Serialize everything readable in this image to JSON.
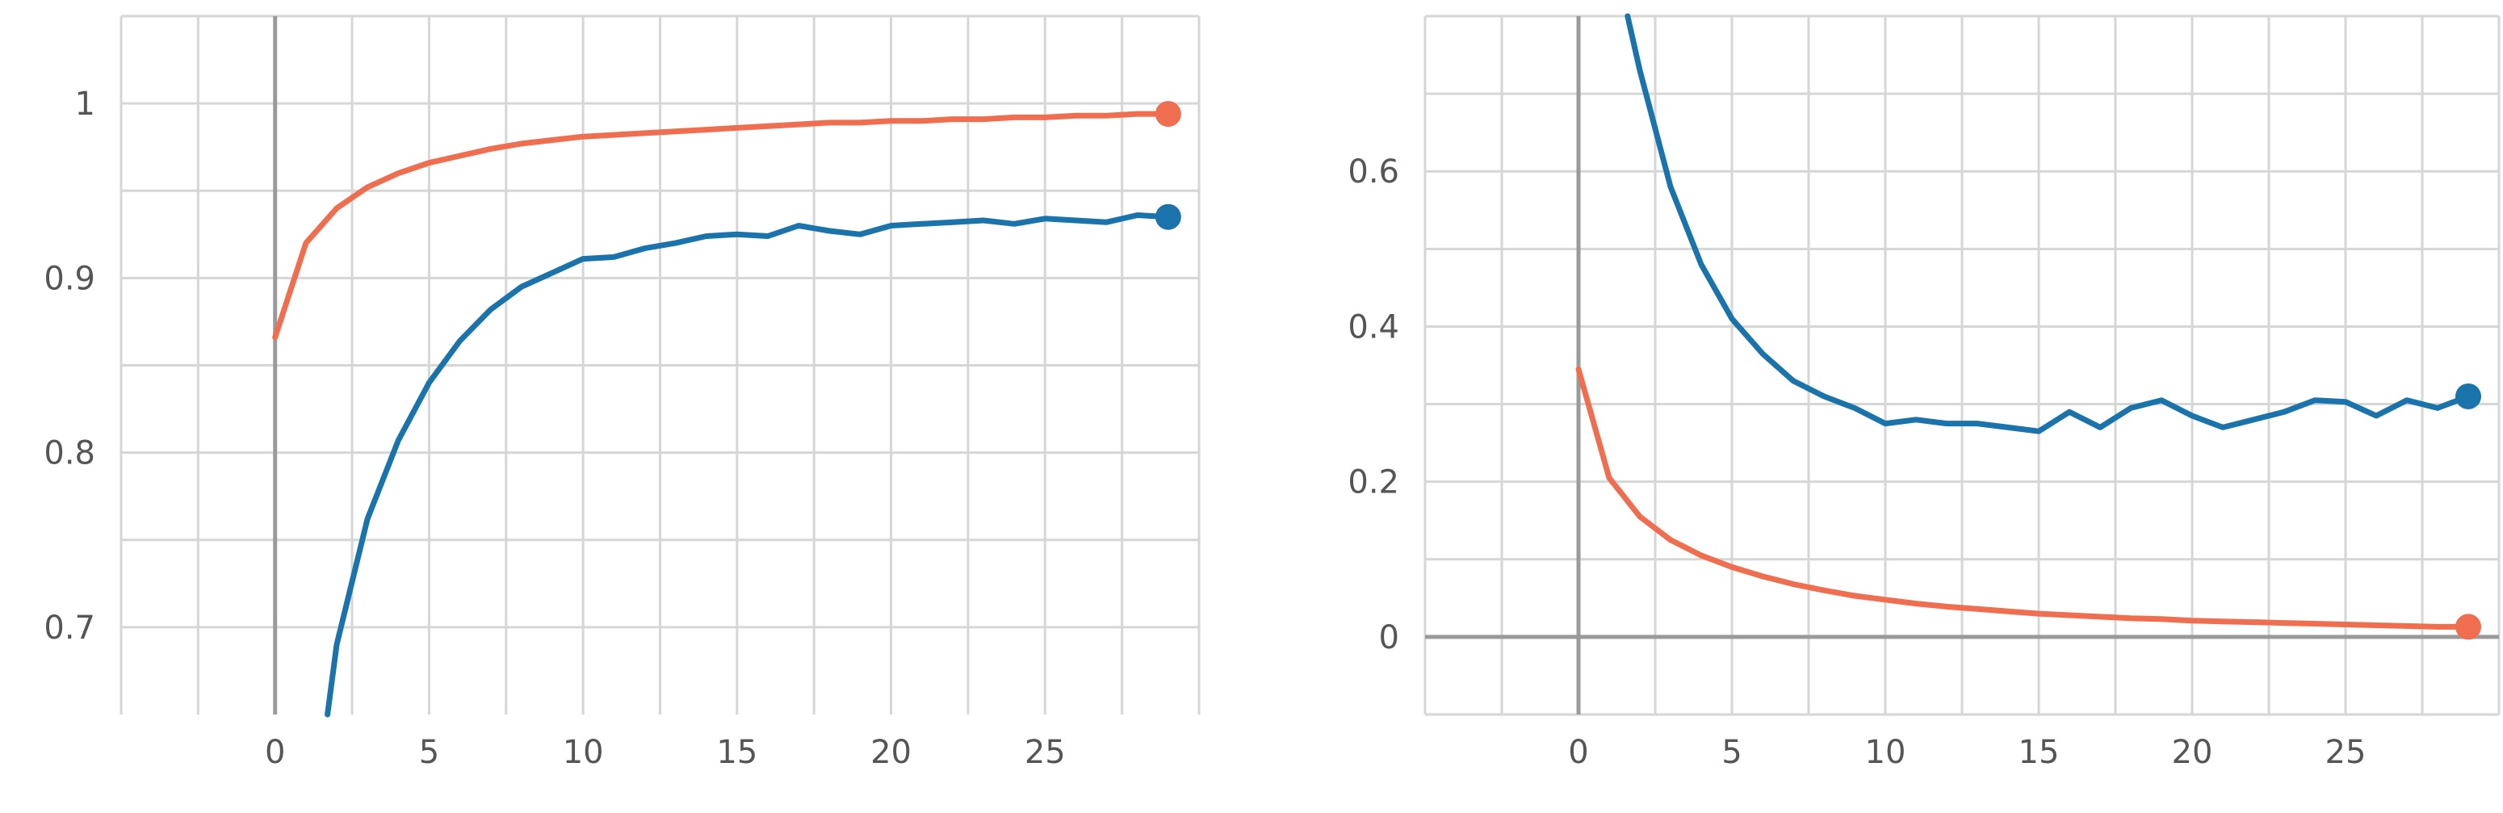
{
  "colors": {
    "train": "#ef6e4f",
    "val": "#1a73aa",
    "grid": "#d6d6d6",
    "axis": "#9a9a9a",
    "text": "#555555"
  },
  "chart_data": [
    {
      "type": "line",
      "title": "",
      "xlabel": "",
      "ylabel": "",
      "xlim": [
        -5,
        30
      ],
      "ylim": [
        0.65,
        1.05
      ],
      "x_ticks": [
        0,
        5,
        10,
        15,
        20,
        25
      ],
      "y_ticks": [
        0.7,
        0.8,
        0.9,
        1
      ],
      "y_tick_labels": [
        "0.7",
        "0.8",
        "0.9",
        "1"
      ],
      "grid": true,
      "series": [
        {
          "color_key": "train",
          "x": [
            0,
            1,
            2,
            3,
            4,
            5,
            6,
            7,
            8,
            9,
            10,
            11,
            12,
            13,
            14,
            15,
            16,
            17,
            18,
            19,
            20,
            21,
            22,
            23,
            24,
            25,
            26,
            27,
            28,
            29
          ],
          "values": [
            0.866,
            0.92,
            0.94,
            0.952,
            0.96,
            0.966,
            0.97,
            0.974,
            0.977,
            0.979,
            0.981,
            0.982,
            0.983,
            0.984,
            0.985,
            0.986,
            0.987,
            0.988,
            0.989,
            0.989,
            0.99,
            0.99,
            0.991,
            0.991,
            0.992,
            0.992,
            0.993,
            0.993,
            0.994,
            0.994
          ]
        },
        {
          "color_key": "val",
          "x": [
            1.7,
            2,
            3,
            4,
            5,
            6,
            7,
            8,
            9,
            10,
            11,
            12,
            13,
            14,
            15,
            16,
            17,
            18,
            19,
            20,
            21,
            22,
            23,
            24,
            25,
            26,
            27,
            28,
            29
          ],
          "values": [
            0.65,
            0.69,
            0.762,
            0.807,
            0.84,
            0.864,
            0.882,
            0.895,
            0.903,
            0.911,
            0.912,
            0.917,
            0.92,
            0.924,
            0.925,
            0.924,
            0.93,
            0.927,
            0.925,
            0.93,
            0.931,
            0.932,
            0.933,
            0.931,
            0.934,
            0.933,
            0.932,
            0.936,
            0.935
          ]
        }
      ]
    },
    {
      "type": "line",
      "title": "",
      "xlabel": "",
      "ylabel": "",
      "xlim": [
        -5,
        30
      ],
      "ylim": [
        -0.1,
        0.8
      ],
      "x_ticks": [
        0,
        5,
        10,
        15,
        20,
        25
      ],
      "y_ticks": [
        0,
        0.2,
        0.4,
        0.6
      ],
      "y_tick_labels": [
        "0",
        "0.2",
        "0.4",
        "0.6"
      ],
      "grid": true,
      "series": [
        {
          "color_key": "train",
          "x": [
            0,
            1,
            2,
            3,
            4,
            5,
            6,
            7,
            8,
            9,
            10,
            11,
            12,
            13,
            14,
            15,
            16,
            17,
            18,
            19,
            20,
            21,
            22,
            23,
            24,
            25,
            26,
            27,
            28,
            29
          ],
          "values": [
            0.345,
            0.205,
            0.155,
            0.125,
            0.105,
            0.09,
            0.078,
            0.068,
            0.06,
            0.053,
            0.048,
            0.043,
            0.039,
            0.036,
            0.033,
            0.03,
            0.028,
            0.026,
            0.024,
            0.023,
            0.021,
            0.02,
            0.019,
            0.018,
            0.017,
            0.016,
            0.015,
            0.014,
            0.013,
            0.013
          ]
        },
        {
          "color_key": "val",
          "x": [
            1.6,
            2,
            3,
            4,
            5,
            6,
            7,
            8,
            9,
            10,
            11,
            12,
            13,
            14,
            15,
            16,
            17,
            18,
            19,
            20,
            21,
            22,
            23,
            24,
            25,
            26,
            27,
            28,
            29
          ],
          "values": [
            0.8,
            0.73,
            0.58,
            0.48,
            0.41,
            0.365,
            0.33,
            0.31,
            0.295,
            0.275,
            0.28,
            0.275,
            0.275,
            0.27,
            0.265,
            0.29,
            0.27,
            0.295,
            0.305,
            0.285,
            0.27,
            0.28,
            0.29,
            0.305,
            0.303,
            0.285,
            0.305,
            0.295,
            0.31
          ]
        }
      ]
    }
  ]
}
